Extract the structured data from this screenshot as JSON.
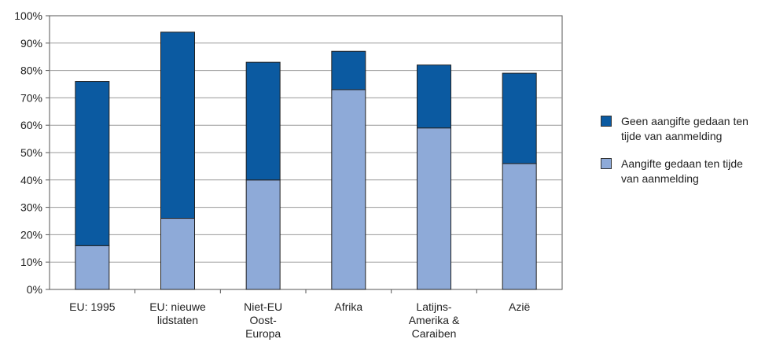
{
  "chart_data": {
    "type": "bar",
    "stacked": true,
    "categories": [
      [
        "EU: 1995"
      ],
      [
        "EU: nieuwe",
        "lidstaten"
      ],
      [
        "Niet-EU",
        "Oost-",
        "Europa"
      ],
      [
        "Afrika"
      ],
      [
        "Latijns-",
        "Amerika &",
        "Caraiben"
      ],
      [
        "Azië"
      ]
    ],
    "series": [
      {
        "name": "Aangifte gedaan ten tijde van aanmelding",
        "color": "#8eaad8",
        "values": [
          16,
          26,
          40,
          73,
          59,
          46
        ]
      },
      {
        "name": "Geen aangifte gedaan ten tijde van aanmelding",
        "color": "#0b5aa1",
        "values": [
          60,
          68,
          43,
          14,
          23,
          33
        ]
      }
    ],
    "ylim": [
      0,
      100
    ],
    "yticks": [
      "0%",
      "10%",
      "20%",
      "30%",
      "40%",
      "50%",
      "60%",
      "70%",
      "80%",
      "90%",
      "100%"
    ],
    "grid": true,
    "legend_position": "right"
  },
  "legend": {
    "items": [
      {
        "line1": "Geen aangifte gedaan ten",
        "line2": "tijde van aanmelding",
        "color": "#0b5aa1"
      },
      {
        "line1": "Aangifte gedaan ten tijde",
        "line2": "van aanmelding",
        "color": "#8eaad8"
      }
    ]
  }
}
